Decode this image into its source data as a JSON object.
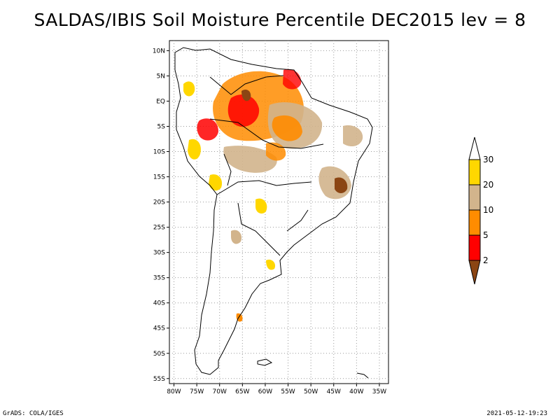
{
  "title": "SALDAS/IBIS Soil Moisture Percentile DEC2015 lev = 8",
  "footer": {
    "left": "GrADS: COLA/IGES",
    "right": "2021-05-12-19:23"
  },
  "map": {
    "lon_ticks": [
      "80W",
      "75W",
      "70W",
      "65W",
      "60W",
      "55W",
      "50W",
      "45W",
      "40W",
      "35W"
    ],
    "lat_ticks": [
      "10N",
      "5N",
      "EQ",
      "5S",
      "10S",
      "15S",
      "20S",
      "25S",
      "30S",
      "35S",
      "40S",
      "45S",
      "50S",
      "55S"
    ],
    "lon_range": [
      -81,
      -33
    ],
    "lat_range": [
      -56,
      12
    ]
  },
  "legend": {
    "labels": [
      "2",
      "5",
      "10",
      "20",
      "30"
    ],
    "colors": {
      "lt2": "#8B4513",
      "2to5": "#FF0000",
      "5to10": "#FF8C00",
      "10to20": "#D2B48C",
      "20to30": "#FFD700",
      "gt30": "#FFFFFF"
    }
  }
}
